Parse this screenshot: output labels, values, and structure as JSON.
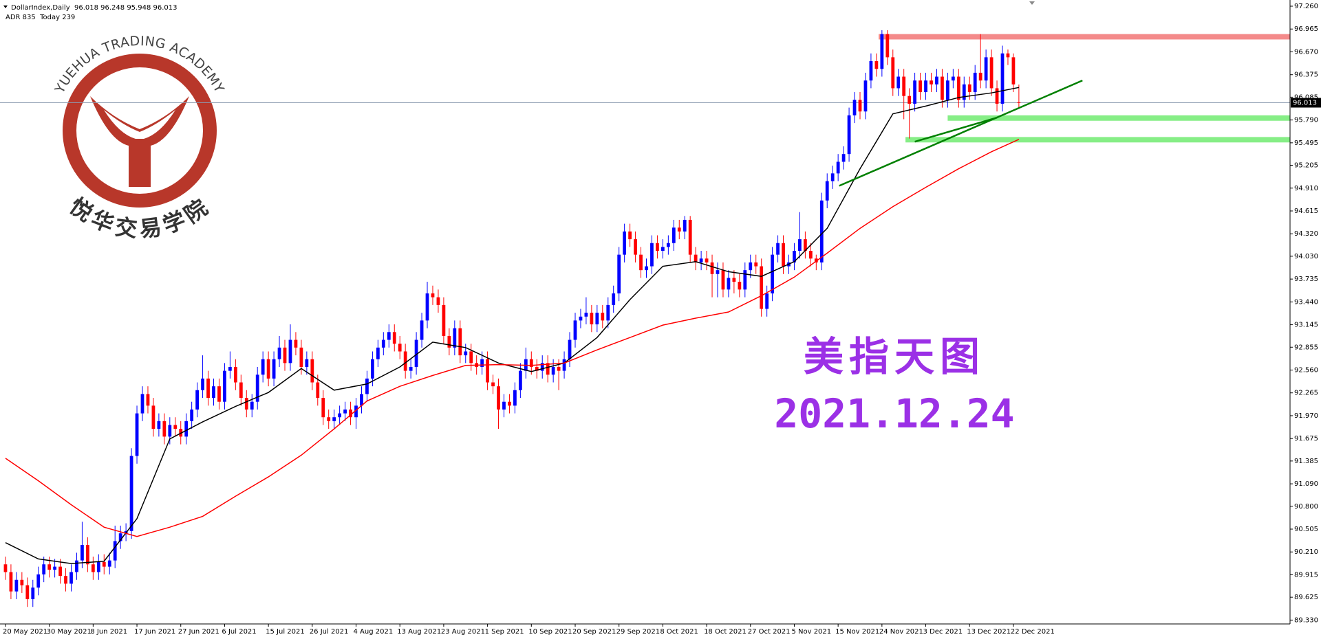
{
  "chart_data": {
    "type": "candlestick",
    "title": "DollarIndex,Daily  96.018 96.248 95.948 96.013",
    "subtitle": "ADR 835  Today 239",
    "watermark": {
      "academy": "YUEHUA TRADING ACADEMY",
      "academy_cn": "悦华交易学院",
      "heading": "美指天图",
      "date": "2021.12.24"
    },
    "up_color": "#0000ff",
    "down_color": "#ff0000",
    "categories": [
      "20 May 2021",
      null,
      null,
      null,
      null,
      null,
      null,
      null,
      "30 May 2021",
      null,
      null,
      null,
      null,
      null,
      null,
      null,
      "8 Jun 2021",
      null,
      null,
      null,
      null,
      null,
      null,
      null,
      "17 Jun 2021",
      null,
      null,
      null,
      null,
      null,
      null,
      null,
      "27 Jun 2021",
      null,
      null,
      null,
      null,
      null,
      null,
      null,
      "6 Jul 2021",
      null,
      null,
      null,
      null,
      null,
      null,
      null,
      "15 Jul 2021",
      null,
      null,
      null,
      null,
      null,
      null,
      null,
      "26 Jul 2021",
      null,
      null,
      null,
      null,
      null,
      null,
      null,
      "4 Aug 2021",
      null,
      null,
      null,
      null,
      null,
      null,
      null,
      "13 Aug 2021",
      null,
      null,
      null,
      null,
      null,
      null,
      null,
      "23 Aug 2021",
      null,
      null,
      null,
      null,
      null,
      null,
      null,
      "1 Sep 2021",
      null,
      null,
      null,
      null,
      null,
      null,
      null,
      "10 Sep 2021",
      null,
      null,
      null,
      null,
      null,
      null,
      null,
      "20 Sep 2021",
      null,
      null,
      null,
      null,
      null,
      null,
      null,
      "29 Sep 2021",
      null,
      null,
      null,
      null,
      null,
      null,
      null,
      "8 Oct 2021",
      null,
      null,
      null,
      null,
      null,
      null,
      null,
      "18 Oct 2021",
      null,
      null,
      null,
      null,
      null,
      null,
      null,
      "27 Oct 2021",
      null,
      null,
      null,
      null,
      null,
      null,
      null,
      "5 Nov 2021",
      null,
      null,
      null,
      null,
      null,
      null,
      null,
      "15 Nov 2021",
      null,
      null,
      null,
      null,
      null,
      null,
      null,
      "24 Nov 2021",
      null,
      null,
      null,
      null,
      null,
      null,
      null,
      "3 Dec 2021",
      null,
      null,
      null,
      null,
      null,
      null,
      null,
      "13 Dec 2021",
      null,
      null,
      null,
      null,
      null,
      null,
      null,
      "22 Dec 2021",
      null
    ],
    "open": [
      90.05,
      89.95,
      89.7,
      89.85,
      89.78,
      89.6,
      89.75,
      89.92,
      90.05,
      89.98,
      90.02,
      89.9,
      89.8,
      89.95,
      90.1,
      90.3,
      90.05,
      89.95,
      90.08,
      90.02,
      90.1,
      90.35,
      90.45,
      90.48,
      91.45,
      92.0,
      92.25,
      92.1,
      91.8,
      91.9,
      91.7,
      91.85,
      91.8,
      91.7,
      91.9,
      92.05,
      92.3,
      92.45,
      92.2,
      92.35,
      92.15,
      92.55,
      92.6,
      92.4,
      92.2,
      92.05,
      92.15,
      92.5,
      92.7,
      92.45,
      92.7,
      92.85,
      92.65,
      92.95,
      92.85,
      92.6,
      92.7,
      92.4,
      92.2,
      91.95,
      91.9,
      91.95,
      92.0,
      92.05,
      91.95,
      92.1,
      92.25,
      92.45,
      92.7,
      92.85,
      92.95,
      93.05,
      92.9,
      92.8,
      92.55,
      92.6,
      92.95,
      93.2,
      93.55,
      93.5,
      93.4,
      93.0,
      92.85,
      93.1,
      92.75,
      92.8,
      92.65,
      92.6,
      92.7,
      92.4,
      92.35,
      92.05,
      92.15,
      92.1,
      92.3,
      92.55,
      92.7,
      92.6,
      92.55,
      92.65,
      92.5,
      92.6,
      92.55,
      92.7,
      92.95,
      93.2,
      93.25,
      93.3,
      93.15,
      93.3,
      93.2,
      93.4,
      93.55,
      94.05,
      94.35,
      94.25,
      94.05,
      93.85,
      93.9,
      94.2,
      94.1,
      94.15,
      94.2,
      94.4,
      94.35,
      94.5,
      94.05,
      93.95,
      94.0,
      93.95,
      93.8,
      93.85,
      93.6,
      93.75,
      93.7,
      93.6,
      93.85,
      93.95,
      93.9,
      93.35,
      93.55,
      94.05,
      94.2,
      93.9,
      93.95,
      94.1,
      94.25,
      94.1,
      94.0,
      93.95,
      94.75,
      95.0,
      95.1,
      95.25,
      95.35,
      95.85,
      96.05,
      95.9,
      96.3,
      96.55,
      96.45,
      96.9,
      96.6,
      96.2,
      96.35,
      96.1,
      96.0,
      96.3,
      96.15,
      96.3,
      96.25,
      96.35,
      96.05,
      96.3,
      96.35,
      96.05,
      96.25,
      96.15,
      96.4,
      96.3,
      96.6,
      96.2,
      96.0,
      96.65,
      96.6,
      96.018
    ],
    "high": [
      90.15,
      90.05,
      89.95,
      89.95,
      89.88,
      89.85,
      90.02,
      90.15,
      90.15,
      90.12,
      90.12,
      90.0,
      90.05,
      90.2,
      90.6,
      90.4,
      90.15,
      90.18,
      90.18,
      90.2,
      90.55,
      90.55,
      90.58,
      91.55,
      92.1,
      92.35,
      92.35,
      92.2,
      92.0,
      92.0,
      91.95,
      91.95,
      91.9,
      92.0,
      92.15,
      92.4,
      92.75,
      92.55,
      92.45,
      92.45,
      92.65,
      92.8,
      92.7,
      92.5,
      92.3,
      92.25,
      92.6,
      92.8,
      92.8,
      92.8,
      93.0,
      92.95,
      93.15,
      93.05,
      92.95,
      92.8,
      92.8,
      92.5,
      92.3,
      92.05,
      92.05,
      92.1,
      92.15,
      92.15,
      92.2,
      92.35,
      92.55,
      92.8,
      92.95,
      93.05,
      93.15,
      93.15,
      93.0,
      92.9,
      92.7,
      93.05,
      93.3,
      93.7,
      93.65,
      93.6,
      93.5,
      93.1,
      93.2,
      93.2,
      92.9,
      92.9,
      92.75,
      92.8,
      92.8,
      92.5,
      92.45,
      92.25,
      92.25,
      92.4,
      92.65,
      92.85,
      92.8,
      92.7,
      92.75,
      92.75,
      92.7,
      92.7,
      92.8,
      93.05,
      93.3,
      93.35,
      93.5,
      93.4,
      93.4,
      93.4,
      93.5,
      93.65,
      94.15,
      94.45,
      94.45,
      94.35,
      94.15,
      94.0,
      94.3,
      94.3,
      94.25,
      94.3,
      94.5,
      94.5,
      94.55,
      94.55,
      94.15,
      94.1,
      94.1,
      94.05,
      93.95,
      93.95,
      93.85,
      93.85,
      93.8,
      93.95,
      94.05,
      94.05,
      94.0,
      93.65,
      94.15,
      94.3,
      94.3,
      94.05,
      94.2,
      94.6,
      94.35,
      94.2,
      94.05,
      94.85,
      95.1,
      95.2,
      95.35,
      95.45,
      95.95,
      96.15,
      96.15,
      96.4,
      96.65,
      96.65,
      96.95,
      96.95,
      96.7,
      96.45,
      96.45,
      96.2,
      96.4,
      96.4,
      96.4,
      96.4,
      96.45,
      96.45,
      96.4,
      96.45,
      96.45,
      96.35,
      96.35,
      96.5,
      96.9,
      96.7,
      96.7,
      96.3,
      96.75,
      96.7,
      96.65,
      96.248
    ],
    "low": [
      89.85,
      89.6,
      89.6,
      89.68,
      89.5,
      89.5,
      89.65,
      89.82,
      89.88,
      89.88,
      89.8,
      89.7,
      89.7,
      89.85,
      90.0,
      89.95,
      89.85,
      89.85,
      89.92,
      89.92,
      90.0,
      90.25,
      90.35,
      90.38,
      91.35,
      91.9,
      92.0,
      91.7,
      91.7,
      91.6,
      91.6,
      91.7,
      91.6,
      91.6,
      91.8,
      91.95,
      92.2,
      92.1,
      92.1,
      92.05,
      92.05,
      92.45,
      92.3,
      92.1,
      91.95,
      91.95,
      92.05,
      92.4,
      92.35,
      92.35,
      92.6,
      92.55,
      92.55,
      92.75,
      92.5,
      92.5,
      92.3,
      92.1,
      91.85,
      91.8,
      91.8,
      91.85,
      91.9,
      91.85,
      91.8,
      92.0,
      92.15,
      92.35,
      92.6,
      92.75,
      92.85,
      92.8,
      92.7,
      92.45,
      92.45,
      92.5,
      92.85,
      93.1,
      93.4,
      93.3,
      92.9,
      92.75,
      92.75,
      92.65,
      92.65,
      92.55,
      92.5,
      92.5,
      92.3,
      92.25,
      91.8,
      91.95,
      92.0,
      92.0,
      92.2,
      92.45,
      92.5,
      92.45,
      92.45,
      92.4,
      92.4,
      92.3,
      92.45,
      92.6,
      92.85,
      93.1,
      93.15,
      93.05,
      93.05,
      93.1,
      93.1,
      93.3,
      93.45,
      93.95,
      94.15,
      93.95,
      93.75,
      93.75,
      93.8,
      94.0,
      94.0,
      94.05,
      94.1,
      94.25,
      94.25,
      93.95,
      93.85,
      93.85,
      93.85,
      93.5,
      93.5,
      93.5,
      93.5,
      93.55,
      93.5,
      93.5,
      93.75,
      93.8,
      93.25,
      93.25,
      93.45,
      93.95,
      93.8,
      93.8,
      93.85,
      94.0,
      94.0,
      93.9,
      93.85,
      93.85,
      94.65,
      94.9,
      95.0,
      95.15,
      95.25,
      95.75,
      95.8,
      95.8,
      96.2,
      96.35,
      96.35,
      96.5,
      96.1,
      96.1,
      95.8,
      95.55,
      95.9,
      96.05,
      96.05,
      96.15,
      96.15,
      95.95,
      95.95,
      96.2,
      95.95,
      95.95,
      96.05,
      96.05,
      96.2,
      96.2,
      96.1,
      95.9,
      95.9,
      96.5,
      96.15,
      95.948
    ],
    "close": [
      89.95,
      89.7,
      89.85,
      89.78,
      89.6,
      89.75,
      89.92,
      90.05,
      89.98,
      90.02,
      89.9,
      89.8,
      89.95,
      90.1,
      90.3,
      90.05,
      89.95,
      90.08,
      90.02,
      90.1,
      90.35,
      90.45,
      90.48,
      91.45,
      92.0,
      92.25,
      92.1,
      91.8,
      91.9,
      91.7,
      91.85,
      91.8,
      91.7,
      91.9,
      92.05,
      92.3,
      92.45,
      92.2,
      92.35,
      92.15,
      92.55,
      92.6,
      92.4,
      92.2,
      92.05,
      92.15,
      92.5,
      92.7,
      92.45,
      92.7,
      92.85,
      92.65,
      92.95,
      92.85,
      92.6,
      92.7,
      92.4,
      92.2,
      91.95,
      91.9,
      91.95,
      92.0,
      92.05,
      91.95,
      92.1,
      92.25,
      92.45,
      92.7,
      92.85,
      92.95,
      93.05,
      92.9,
      92.8,
      92.55,
      92.6,
      92.95,
      93.2,
      93.55,
      93.5,
      93.4,
      93.0,
      92.85,
      93.1,
      92.75,
      92.8,
      92.65,
      92.6,
      92.7,
      92.4,
      92.35,
      92.05,
      92.15,
      92.1,
      92.3,
      92.55,
      92.7,
      92.6,
      92.55,
      92.65,
      92.5,
      92.6,
      92.55,
      92.7,
      92.95,
      93.2,
      93.25,
      93.3,
      93.15,
      93.3,
      93.2,
      93.4,
      93.55,
      94.05,
      94.35,
      94.25,
      94.05,
      93.85,
      93.9,
      94.2,
      94.1,
      94.15,
      94.2,
      94.4,
      94.35,
      94.5,
      94.05,
      93.95,
      94.0,
      93.95,
      93.8,
      93.85,
      93.6,
      93.75,
      93.7,
      93.6,
      93.85,
      93.95,
      93.9,
      93.35,
      93.55,
      94.05,
      94.2,
      93.9,
      93.95,
      94.1,
      94.25,
      94.1,
      94.0,
      93.95,
      94.75,
      95.0,
      95.1,
      95.25,
      95.35,
      95.85,
      96.05,
      95.9,
      96.3,
      96.55,
      96.45,
      96.9,
      96.6,
      96.2,
      96.35,
      96.1,
      96.0,
      96.3,
      96.15,
      96.3,
      96.25,
      96.35,
      96.05,
      96.3,
      96.35,
      96.05,
      96.25,
      96.15,
      96.4,
      96.3,
      96.6,
      96.2,
      96.0,
      96.65,
      96.6,
      96.25,
      96.013
    ],
    "moving_averages": [
      {
        "color": "#000000",
        "x": [
          0,
          6,
          12,
          18,
          24,
          30,
          36,
          42,
          48,
          54,
          60,
          66,
          72,
          78,
          84,
          90,
          96,
          102,
          108,
          114,
          120,
          126,
          132,
          138,
          144,
          150,
          156,
          162,
          168,
          174,
          180,
          185
        ],
        "values": [
          90.33,
          90.12,
          90.06,
          90.09,
          90.64,
          91.67,
          91.89,
          92.09,
          92.27,
          92.58,
          92.3,
          92.38,
          92.6,
          92.92,
          92.85,
          92.65,
          92.54,
          92.65,
          92.98,
          93.47,
          93.9,
          93.96,
          93.83,
          93.77,
          93.96,
          94.39,
          95.16,
          95.87,
          95.97,
          96.08,
          96.14,
          96.21
        ]
      },
      {
        "color": "#ff0000",
        "x": [
          0,
          6,
          12,
          18,
          24,
          30,
          36,
          42,
          48,
          54,
          60,
          66,
          72,
          78,
          84,
          90,
          96,
          102,
          108,
          114,
          120,
          126,
          132,
          138,
          144,
          150,
          156,
          162,
          168,
          174,
          180,
          185
        ],
        "values": [
          91.42,
          91.13,
          90.82,
          90.53,
          90.41,
          90.53,
          90.67,
          90.93,
          91.18,
          91.46,
          91.8,
          92.16,
          92.35,
          92.49,
          92.62,
          92.63,
          92.62,
          92.65,
          92.82,
          92.98,
          93.14,
          93.23,
          93.31,
          93.52,
          93.76,
          94.07,
          94.39,
          94.67,
          94.92,
          95.16,
          95.38,
          95.54
        ]
      }
    ],
    "zones": [
      {
        "color": "#f48a8a",
        "x0": 159.4,
        "low": 96.83,
        "high": 96.9
      },
      {
        "color": "#86ee86",
        "x0": 172,
        "low": 95.78,
        "high": 95.85
      },
      {
        "color": "#86ee86",
        "x0": 164.3,
        "low": 95.5,
        "high": 95.57
      }
    ],
    "trendlines": [
      {
        "color": "#008000",
        "x": [
          152.2,
          196.6
        ],
        "y": [
          94.94,
          96.3
        ]
      },
      {
        "color": "#008000",
        "x": [
          166,
          181
        ],
        "y": [
          95.51,
          95.82
        ]
      }
    ],
    "current_price": 96.013,
    "xlim": [
      -1,
      234.5
    ],
    "ylim": [
      89.28,
      97.34
    ],
    "yticks": [
      {
        "value": 97.26,
        "label": "97.260"
      },
      96.965,
      {
        "value": 96.67,
        "label": "96.670"
      },
      96.375,
      96.085,
      {
        "value": 95.79,
        "label": "95.790"
      },
      95.495,
      95.205,
      {
        "value": 94.91,
        "label": "94.910"
      },
      94.615,
      {
        "value": 94.32,
        "label": "94.320"
      },
      {
        "value": 94.03,
        "label": "94.030"
      },
      93.735,
      {
        "value": 93.44,
        "label": "93.440"
      },
      93.145,
      92.855,
      {
        "value": 92.56,
        "label": "92.560"
      },
      92.265,
      {
        "value": 91.97,
        "label": "91.970"
      },
      91.675,
      91.385,
      {
        "value": 91.09,
        "label": "91.090"
      },
      {
        "value": 90.8,
        "label": "90.800"
      },
      90.505,
      {
        "value": 90.21,
        "label": "90.210"
      },
      89.915,
      89.625,
      {
        "value": 89.33,
        "label": "89.330"
      }
    ],
    "grid": false
  }
}
